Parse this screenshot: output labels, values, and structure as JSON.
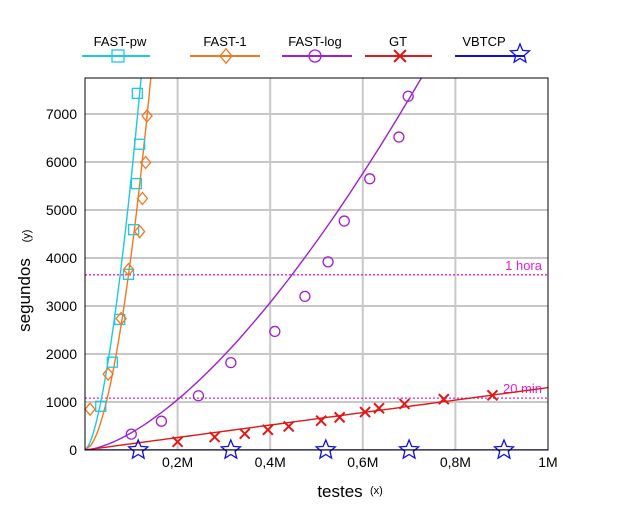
{
  "chart_data": {
    "type": "line",
    "title": "",
    "xlabel": "testes",
    "xlabel_suffix": "(x)",
    "ylabel": "segundos",
    "ylabel_suffix": "(y)",
    "xlim": [
      0,
      1000000
    ],
    "ylim": [
      0,
      7750
    ],
    "x_ticks": [
      {
        "value": 200000,
        "label": "0,2M"
      },
      {
        "value": 400000,
        "label": "0,4M"
      },
      {
        "value": 600000,
        "label": "0,6M"
      },
      {
        "value": 800000,
        "label": "0,8M"
      },
      {
        "value": 1000000,
        "label": "1M"
      }
    ],
    "y_ticks": [
      {
        "value": 0,
        "label": "0"
      },
      {
        "value": 1000,
        "label": "1000"
      },
      {
        "value": 2000,
        "label": "2000"
      },
      {
        "value": 3000,
        "label": "3000"
      },
      {
        "value": 4000,
        "label": "4000"
      },
      {
        "value": 5000,
        "label": "5000"
      },
      {
        "value": 6000,
        "label": "6000"
      },
      {
        "value": 7000,
        "label": "7000"
      }
    ],
    "grid": true,
    "legend_position": "top",
    "reference_lines": [
      {
        "y": 3650,
        "label": "1 hora",
        "color": "#e020e0"
      },
      {
        "y": 1080,
        "label": "20 min",
        "color": "#e020e0"
      }
    ],
    "series": [
      {
        "name": "FAST-pw",
        "color": "#1ec8e0",
        "marker": "square",
        "x": [
          34000,
          59000,
          75000,
          94000,
          105000,
          111000,
          118000,
          113000
        ],
        "y": [
          910,
          1830,
          2720,
          3660,
          4590,
          5550,
          6370,
          7430
        ]
      },
      {
        "name": "FAST-1",
        "color": "#f07820",
        "marker": "diamond",
        "x": [
          11000,
          50000,
          78000,
          94000,
          118000,
          124000,
          131000,
          134000
        ],
        "y": [
          850,
          1580,
          2740,
          3760,
          4550,
          5240,
          5990,
          6960
        ]
      },
      {
        "name": "FAST-log",
        "color": "#a020d0",
        "marker": "circle",
        "x": [
          100000,
          165000,
          245000,
          315000,
          410000,
          475000,
          525000,
          560000,
          615000,
          678000,
          698000
        ],
        "y": [
          330,
          600,
          1130,
          1820,
          2470,
          3200,
          3920,
          4770,
          5650,
          6520,
          7370
        ]
      },
      {
        "name": "GT",
        "color": "#e01818",
        "marker": "x",
        "x": [
          200000,
          280000,
          345000,
          395000,
          440000,
          510000,
          550000,
          605000,
          635000,
          690000,
          775000,
          880000
        ],
        "y": [
          170,
          270,
          340,
          420,
          490,
          610,
          680,
          790,
          870,
          960,
          1060,
          1140
        ]
      },
      {
        "name": "VBTCP",
        "color": "#1010e0",
        "marker": "star",
        "x": [
          115000,
          315000,
          520000,
          700000,
          905000
        ],
        "y": [
          0,
          0,
          0,
          0,
          0
        ]
      }
    ]
  }
}
